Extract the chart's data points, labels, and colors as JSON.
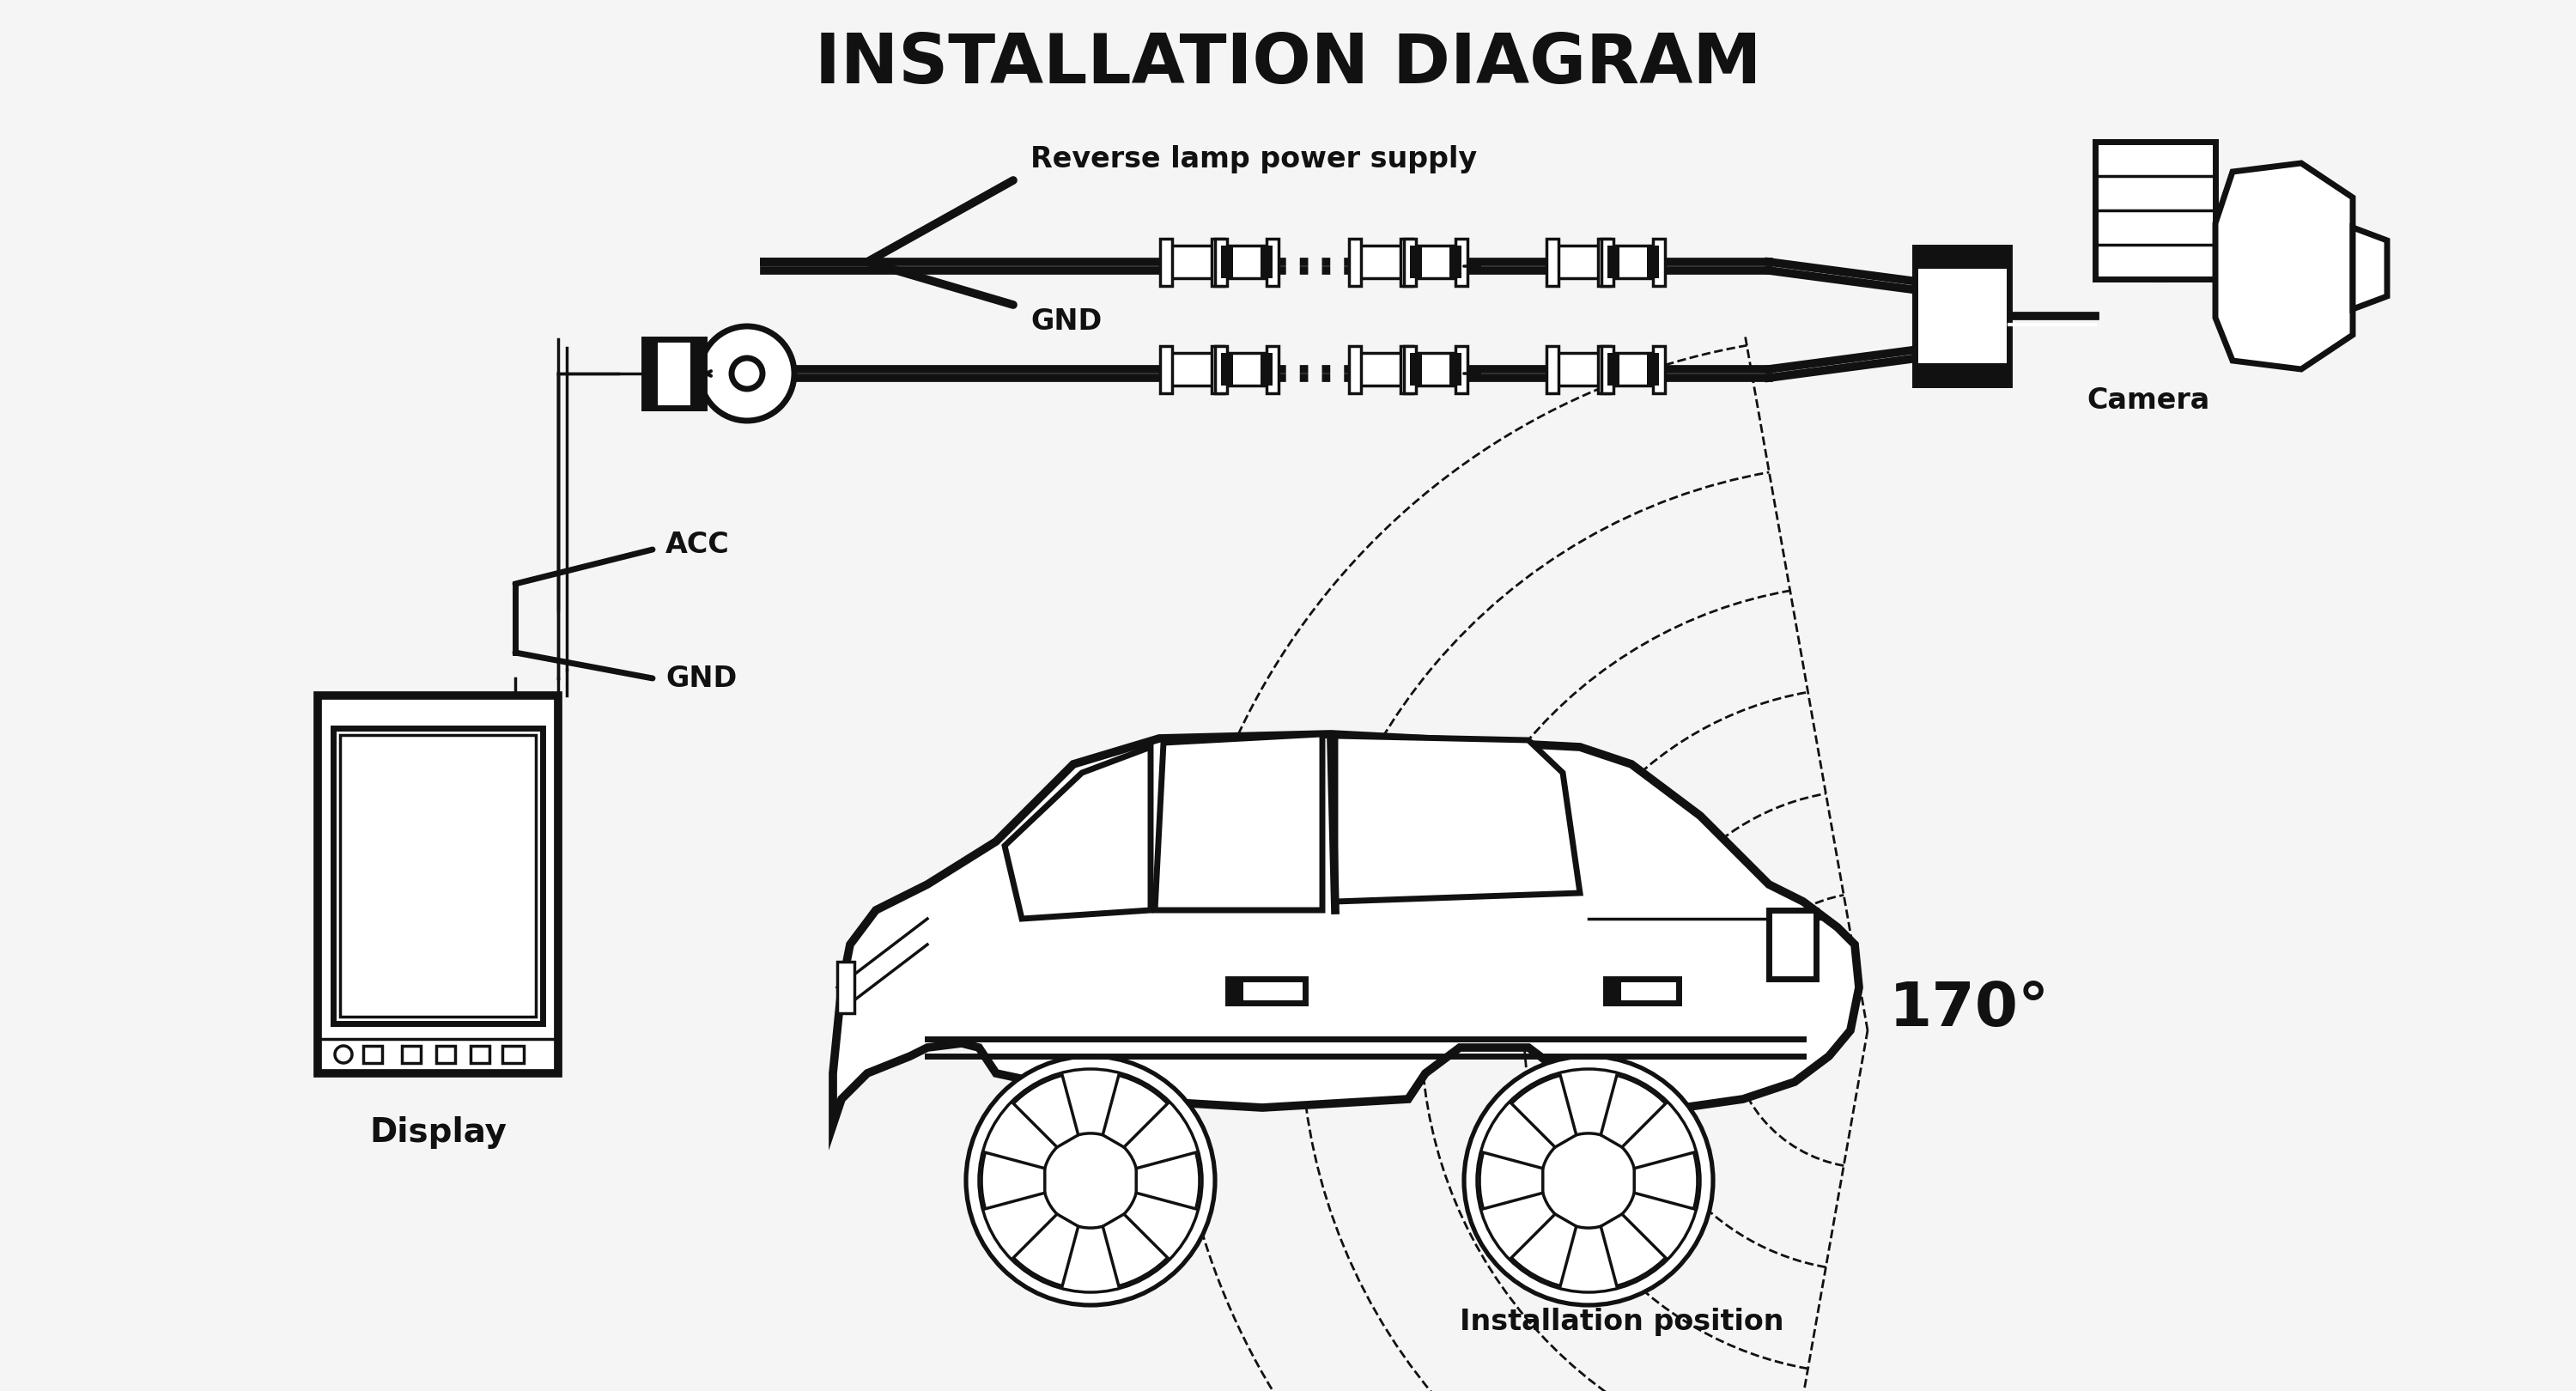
{
  "title": "INSTALLATION DIAGRAM",
  "title_fontsize": 58,
  "title_fontweight": "bold",
  "bg_color": "#f5f5f5",
  "line_color": "#111111",
  "text_color": "#111111",
  "labels": {
    "reverse_lamp": "Reverse lamp power supply",
    "gnd_top": "GND",
    "acc": "ACC",
    "gnd_bottom": "GND",
    "camera": "Camera",
    "display": "Display",
    "angle": "170°",
    "install_pos": "Installation position"
  },
  "label_fontsize": 22,
  "label_bold_fontsize": 24
}
